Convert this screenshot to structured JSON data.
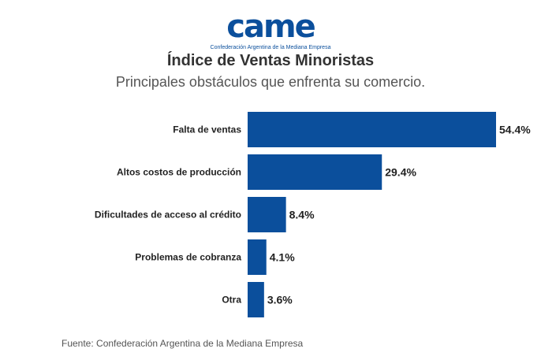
{
  "logo": {
    "text": "came",
    "subtitle": "Confederación Argentina de la Mediana Empresa"
  },
  "colors": {
    "bar": "#0b4f9c",
    "label": "#222222",
    "title": "#333333",
    "subtitle": "#555555"
  },
  "chart_data": {
    "type": "bar",
    "orientation": "horizontal",
    "title": "Índice de Ventas Minoristas",
    "subtitle": "Principales obstáculos que enfrenta su comercio.",
    "categories": [
      "Falta de ventas",
      "Altos costos de producción",
      "Dificultades de acceso al crédito",
      "Problemas de cobranza",
      "Otra"
    ],
    "values": [
      54.4,
      29.4,
      8.4,
      4.1,
      3.6
    ],
    "value_labels": [
      "54.4%",
      "29.4%",
      "8.4%",
      "4.1%",
      "3.6%"
    ],
    "xlim": [
      0,
      54.4
    ],
    "xlabel": "",
    "ylabel": "",
    "grid": false,
    "legend": "none"
  },
  "source": "Fuente: Confederación Argentina de la Mediana Empresa"
}
